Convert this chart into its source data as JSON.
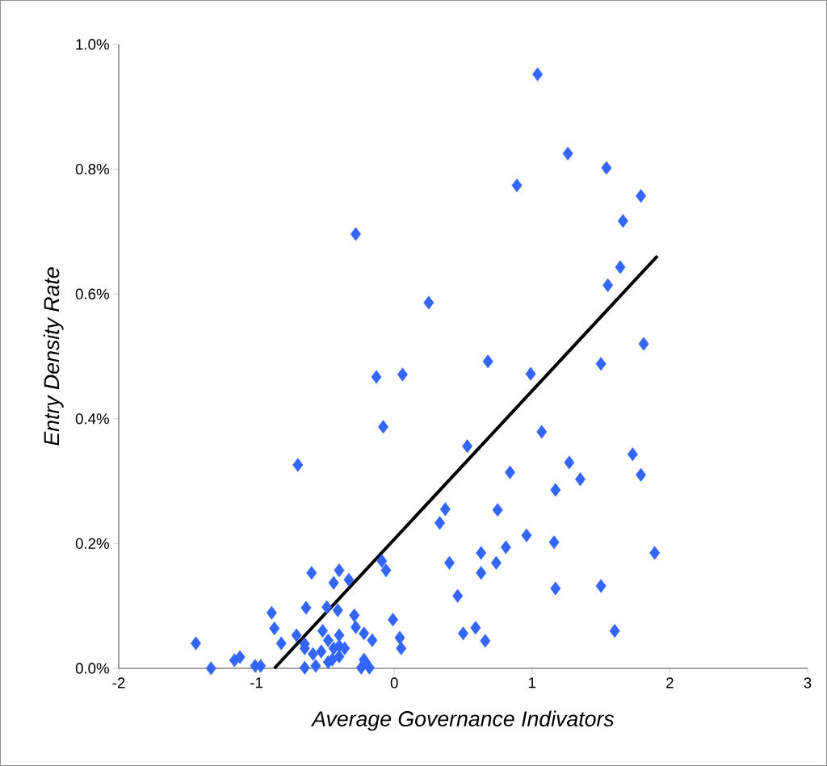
{
  "chart_data": {
    "type": "scatter",
    "xlabel": "Average Governance Indivators",
    "ylabel": "Entry Density Rate",
    "xlim": [
      -2,
      3
    ],
    "xticks": [
      -2,
      -1,
      0,
      1,
      2,
      3
    ],
    "ylim": [
      0,
      1.0
    ],
    "yticks": [
      {
        "value": 0,
        "label": "0.0%"
      },
      {
        "value": 0.2,
        "label": "0.2%"
      },
      {
        "value": 0.4,
        "label": "0.4%"
      },
      {
        "value": 0.6,
        "label": "0.6%"
      },
      {
        "value": 0.8,
        "label": "0.8%"
      },
      {
        "value": 1.0,
        "label": "1.0%"
      }
    ],
    "marker": "diamond",
    "series": [
      {
        "color": "#3366ff",
        "x": [
          -1.44,
          -1.33,
          -1.16,
          -1.12,
          -1.01,
          -0.97,
          -0.89,
          -0.87,
          -0.82,
          -0.6,
          -0.64,
          -0.4,
          -0.44,
          -0.33,
          -0.49,
          -0.41,
          -0.29,
          -0.28,
          -0.22,
          -0.16,
          -0.01,
          0.04,
          0.05,
          -0.09,
          -0.06,
          -0.71,
          -0.65,
          -0.65,
          -0.65,
          -0.57,
          -0.52,
          -0.48,
          -0.44,
          -0.4,
          -0.4,
          -0.45,
          -0.53,
          -0.59,
          -0.48,
          -0.4,
          -0.36,
          -0.22,
          -0.18,
          -0.24,
          -0.21,
          -0.7,
          -0.28,
          -0.08,
          -0.13,
          0.06,
          0.25,
          0.68,
          0.99,
          1.5,
          1.81,
          1.07,
          0.53,
          1.27,
          1.73,
          0.84,
          1.35,
          1.79,
          1.17,
          0.37,
          0.33,
          0.75,
          0.96,
          0.63,
          0.4,
          0.81,
          0.74,
          0.63,
          1.16,
          1.89,
          0.46,
          1.17,
          1.5,
          0.5,
          0.59,
          0.66,
          1.6,
          1.04,
          1.26,
          1.54,
          0.89,
          1.79,
          1.66,
          1.64,
          1.55
        ],
        "values": [
          0.04,
          0.0,
          0.013,
          0.018,
          0.004,
          0.004,
          0.089,
          0.064,
          0.04,
          0.153,
          0.097,
          0.157,
          0.137,
          0.142,
          0.098,
          0.093,
          0.085,
          0.066,
          0.056,
          0.045,
          0.078,
          0.049,
          0.032,
          0.172,
          0.157,
          0.053,
          0.039,
          0.032,
          0.001,
          0.004,
          0.06,
          0.045,
          0.032,
          0.053,
          0.036,
          0.014,
          0.027,
          0.023,
          0.01,
          0.019,
          0.032,
          0.014,
          0.001,
          0.001,
          0.01,
          0.326,
          0.696,
          0.387,
          0.467,
          0.471,
          0.586,
          0.492,
          0.472,
          0.488,
          0.52,
          0.379,
          0.356,
          0.33,
          0.343,
          0.314,
          0.303,
          0.31,
          0.286,
          0.255,
          0.233,
          0.254,
          0.213,
          0.185,
          0.169,
          0.194,
          0.169,
          0.153,
          0.202,
          0.185,
          0.116,
          0.128,
          0.132,
          0.056,
          0.065,
          0.044,
          0.06,
          0.952,
          0.825,
          0.802,
          0.774,
          0.757,
          0.717,
          0.643,
          0.614
        ]
      },
      {
        "type": "line",
        "color": "#000000",
        "marker": "none",
        "x": [
          -0.87,
          1.91
        ],
        "values": [
          0.0,
          0.661
        ]
      }
    ]
  }
}
